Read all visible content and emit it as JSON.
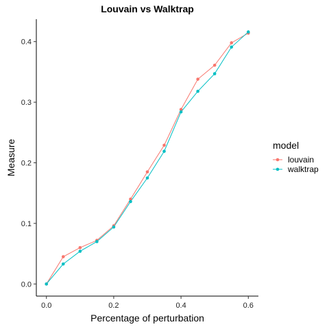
{
  "chart_data": {
    "type": "line",
    "title": "Louvain vs Walktrap",
    "xlabel": "Percentage of perturbation",
    "ylabel": "Measure",
    "xlim": [
      -0.03,
      0.63
    ],
    "ylim": [
      -0.02,
      0.437
    ],
    "x_ticks": [
      0.0,
      0.2,
      0.4,
      0.6
    ],
    "x_tick_labels": [
      "0.0",
      "0.2",
      "0.4",
      "0.6"
    ],
    "y_ticks": [
      0.0,
      0.1,
      0.2,
      0.3,
      0.4
    ],
    "y_tick_labels": [
      "0.0",
      "0.1",
      "0.2",
      "0.3",
      "0.4"
    ],
    "grid": false,
    "legend": {
      "title": "model",
      "placement": "right"
    },
    "x": [
      0.0,
      0.05,
      0.1,
      0.15,
      0.2,
      0.25,
      0.3,
      0.35,
      0.4,
      0.45,
      0.5,
      0.55,
      0.6
    ],
    "series": [
      {
        "name": "louvain",
        "color": "#F8766D",
        "values": [
          0.0,
          0.045,
          0.06,
          0.072,
          0.096,
          0.14,
          0.185,
          0.229,
          0.288,
          0.338,
          0.361,
          0.398,
          0.414
        ]
      },
      {
        "name": "walktrap",
        "color": "#00BFC4",
        "values": [
          0.0,
          0.033,
          0.054,
          0.07,
          0.094,
          0.136,
          0.175,
          0.219,
          0.284,
          0.318,
          0.347,
          0.391,
          0.416
        ]
      }
    ]
  }
}
